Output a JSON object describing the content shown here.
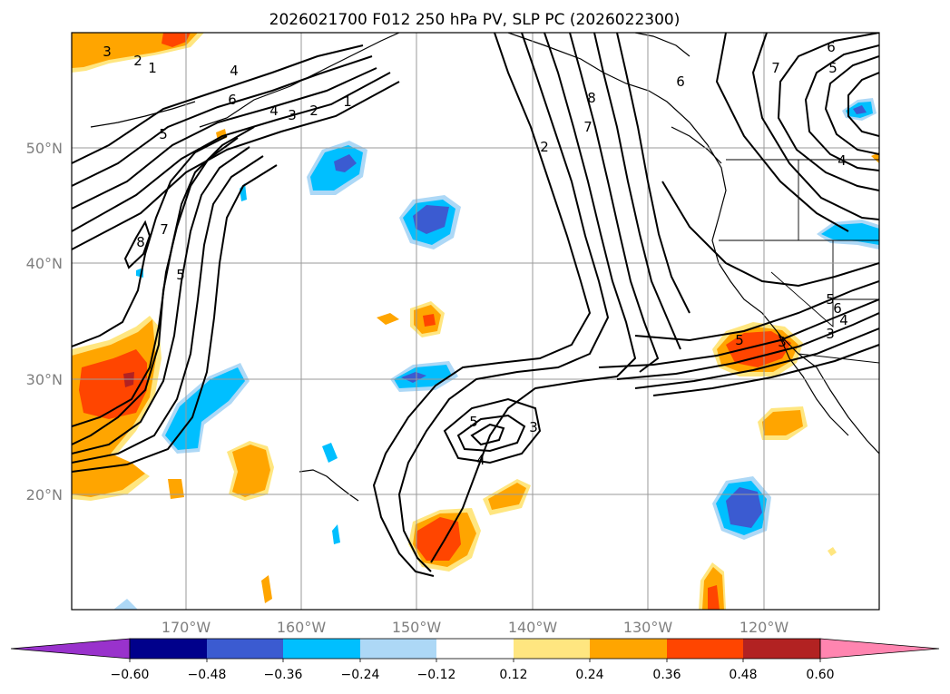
{
  "title": "2026021700 F012 250 hPa PV, SLP PC (2026022300)",
  "map": {
    "lon_range": [
      -180,
      -110
    ],
    "lat_range": [
      10,
      60
    ],
    "lon_ticks": [
      {
        "value": -170,
        "label": "170°W"
      },
      {
        "value": -160,
        "label": "160°W"
      },
      {
        "value": -150,
        "label": "150°W"
      },
      {
        "value": -140,
        "label": "140°W"
      },
      {
        "value": -130,
        "label": "130°W"
      },
      {
        "value": -120,
        "label": "120°W"
      }
    ],
    "lat_ticks": [
      {
        "value": 20,
        "label": "20°N"
      },
      {
        "value": 30,
        "label": "30°N"
      },
      {
        "value": 40,
        "label": "40°N"
      },
      {
        "value": 50,
        "label": "50°N"
      }
    ],
    "grid": true,
    "tick_color": "#7f7f7f"
  },
  "colorbar": {
    "labels": [
      "−0.60",
      "−0.48",
      "−0.36",
      "−0.24",
      "−0.12",
      "0.12",
      "0.24",
      "0.36",
      "0.48",
      "0.60"
    ],
    "colors": [
      "#9932cc",
      "#00008b",
      "#3b5bd1",
      "#00bfff",
      "#add8f6",
      "#ffffff",
      "#ffe680",
      "#ffa500",
      "#ff4500",
      "#b22222",
      "#ff85b0"
    ]
  },
  "contour_labels": [
    "3",
    "2",
    "1",
    "4",
    "6",
    "4",
    "3",
    "2",
    "1",
    "5",
    "8",
    "7",
    "5",
    "2",
    "7",
    "8",
    "6",
    "6",
    "5",
    "4",
    "7",
    "5",
    "3",
    "5",
    "3",
    "4",
    "5",
    "6",
    "4",
    "3"
  ]
}
